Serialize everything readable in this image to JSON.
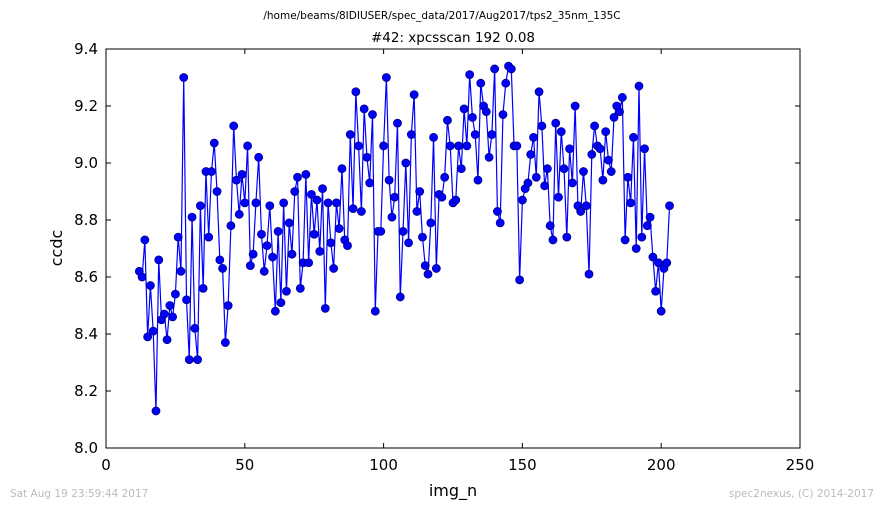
{
  "page": {
    "path_title": "/home/beams/8IDIUSER/spec_data/2017/Aug2017/tps2_35nm_135C",
    "footer_left": "Sat Aug 19 23:59:44 2017",
    "footer_right": "spec2nexus, (C) 2014-2017"
  },
  "colors": {
    "series": "#0000ff",
    "marker_fill": "#0000ff",
    "marker_edge": "#000080"
  },
  "chart_data": {
    "type": "line",
    "title": "#42: xpcsscan 192 0.08",
    "xlabel": "img_n",
    "ylabel": "ccdc",
    "xlim": [
      0,
      250
    ],
    "ylim": [
      8.0,
      9.4
    ],
    "xticks": [
      0,
      50,
      100,
      150,
      200,
      250
    ],
    "yticks": [
      8.0,
      8.2,
      8.4,
      8.6,
      8.8,
      9.0,
      9.2,
      9.4
    ],
    "grid": false,
    "markers": true,
    "series": [
      {
        "x_start": 12,
        "x_step": 1,
        "values": [
          8.62,
          8.6,
          8.73,
          8.39,
          8.57,
          8.41,
          8.13,
          8.66,
          8.45,
          8.47,
          8.38,
          8.5,
          8.46,
          8.54,
          8.74,
          8.62,
          9.3,
          8.52,
          8.31,
          8.81,
          8.42,
          8.31,
          8.85,
          8.56,
          8.97,
          8.74,
          8.97,
          9.07,
          8.9,
          8.66,
          8.63,
          8.37,
          8.5,
          8.78,
          9.13,
          8.94,
          8.82,
          8.96,
          8.86,
          9.06,
          8.64,
          8.68,
          8.86,
          9.02,
          8.75,
          8.62,
          8.71,
          8.85,
          8.67,
          8.48,
          8.76,
          8.51,
          8.86,
          8.55,
          8.79,
          8.68,
          8.9,
          8.95,
          8.56,
          8.65,
          8.96,
          8.65,
          8.89,
          8.75,
          8.87,
          8.69,
          8.91,
          8.49,
          8.86,
          8.72,
          8.63,
          8.86,
          8.77,
          8.98,
          8.73,
          8.71,
          9.1,
          8.84,
          9.25,
          9.06,
          8.83,
          9.19,
          9.02,
          8.93,
          9.17,
          8.48,
          8.76,
          8.76,
          9.06,
          9.3,
          8.94,
          8.81,
          8.88,
          9.14,
          8.53,
          8.76,
          9.0,
          8.72,
          9.1,
          9.24,
          8.83,
          8.9,
          8.74,
          8.64,
          8.61,
          8.79,
          9.09,
          8.63,
          8.89,
          8.88,
          8.95,
          9.15,
          9.06,
          8.86,
          8.87,
          9.06,
          8.98,
          9.19,
          9.06,
          9.31,
          9.16,
          9.1,
          8.94,
          9.28,
          9.2,
          9.18,
          9.02,
          9.1,
          9.33,
          8.83,
          8.79,
          9.17,
          9.28,
          9.34,
          9.33,
          9.06,
          9.06,
          8.59,
          8.87,
          8.91,
          8.93,
          9.03,
          9.09,
          8.95,
          9.25,
          9.13,
          8.92,
          8.98,
          8.78,
          8.73,
          9.14,
          8.88,
          9.11,
          8.98,
          8.74,
          9.05,
          8.93,
          9.2,
          8.85,
          8.83,
          8.97,
          8.85,
          8.61,
          9.03,
          9.13,
          9.06,
          9.05,
          8.94,
          9.11,
          9.01,
          8.97,
          9.16,
          9.2,
          9.18,
          9.23,
          8.73,
          8.95,
          8.86,
          9.09,
          8.7,
          9.27,
          8.74,
          9.05,
          8.78,
          8.81,
          8.67,
          8.55,
          8.65,
          8.48,
          8.63,
          8.65,
          8.85
        ]
      }
    ]
  }
}
